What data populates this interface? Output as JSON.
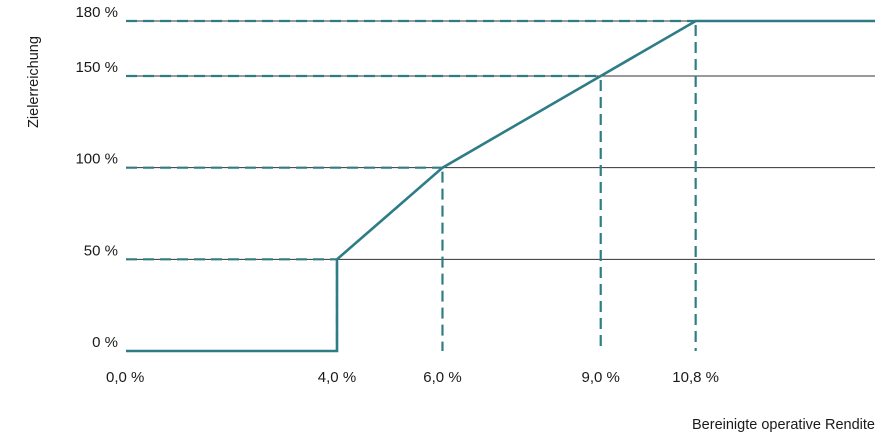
{
  "chart_data": {
    "type": "line",
    "title": "",
    "xlabel": "Bereinigte operative Rendite",
    "ylabel": "Zielerreichung",
    "x_ticks": [
      {
        "value": 0.0,
        "label": "0,0 %"
      },
      {
        "value": 4.0,
        "label": "4,0 %"
      },
      {
        "value": 6.0,
        "label": "6,0 %"
      },
      {
        "value": 9.0,
        "label": "9,0 %"
      },
      {
        "value": 10.8,
        "label": "10,8 %"
      }
    ],
    "y_ticks": [
      {
        "value": 0,
        "label": "0 %"
      },
      {
        "value": 50,
        "label": "50 %"
      },
      {
        "value": 100,
        "label": "100 %"
      },
      {
        "value": 150,
        "label": "150 %"
      },
      {
        "value": 180,
        "label": "180 %"
      }
    ],
    "series": [
      {
        "points": [
          {
            "x": 0.0,
            "y": 0
          },
          {
            "x": 4.0,
            "y": 0
          },
          {
            "x": 4.0,
            "y": 50
          },
          {
            "x": 6.0,
            "y": 100
          },
          {
            "x": 9.0,
            "y": 150
          },
          {
            "x": 10.8,
            "y": 180
          },
          {
            "x": 14.2,
            "y": 180
          }
        ]
      }
    ],
    "reference_lines": [
      {
        "x": 4.0,
        "y": 50
      },
      {
        "x": 6.0,
        "y": 100
      },
      {
        "x": 9.0,
        "y": 150
      },
      {
        "x": 10.8,
        "y": 180
      }
    ],
    "xlim": [
      0,
      14.2
    ],
    "ylim": [
      0,
      180
    ],
    "grid": true,
    "colors": {
      "line": "#2e7d86",
      "reference": "#2e7d86",
      "grid": "#333333",
      "text": "#1a1a1a"
    }
  }
}
